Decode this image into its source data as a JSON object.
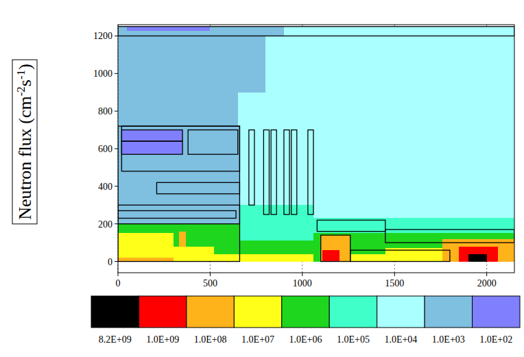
{
  "chart_data": {
    "type": "heatmap",
    "y_label_parts": [
      "Neutron flux (cm",
      "-2",
      "s",
      "-1",
      ")"
    ],
    "xlim": [
      0,
      2150
    ],
    "ylim": [
      -60,
      1260
    ],
    "xticks": [
      0,
      500,
      1000,
      1500,
      2000
    ],
    "yticks": [
      0,
      200,
      400,
      600,
      800,
      1000,
      1200
    ],
    "grid": true,
    "regions": [
      {
        "x": [
          0,
          2150
        ],
        "y": [
          0,
          1250
        ],
        "value": 5000
      },
      {
        "x": [
          0,
          900
        ],
        "y": [
          1200,
          1250
        ],
        "value": 500
      },
      {
        "x": [
          0,
          650
        ],
        "y": [
          720,
          1200
        ],
        "value": 500
      },
      {
        "x": [
          650,
          800
        ],
        "y": [
          900,
          1200
        ],
        "value": 500
      },
      {
        "x": [
          50,
          500
        ],
        "y": [
          1228,
          1250
        ],
        "value": 50
      },
      {
        "x": [
          0,
          660
        ],
        "y": [
          200,
          720
        ],
        "value": 500
      },
      {
        "x": [
          20,
          350
        ],
        "y": [
          570,
          700
        ],
        "value": 50
      },
      {
        "x": [
          660,
          1060
        ],
        "y": [
          100,
          300
        ],
        "value": 50000
      },
      {
        "x": [
          0,
          660
        ],
        "y": [
          0,
          200
        ],
        "value": 500000
      },
      {
        "x": [
          660,
          1080
        ],
        "y": [
          0,
          110
        ],
        "value": 500000
      },
      {
        "x": [
          0,
          300
        ],
        "y": [
          20,
          150
        ],
        "value": 5000000
      },
      {
        "x": [
          0,
          300
        ],
        "y": [
          0,
          20
        ],
        "value": 50000000
      },
      {
        "x": [
          300,
          520
        ],
        "y": [
          0,
          80
        ],
        "value": 5000000
      },
      {
        "x": [
          520,
          1090
        ],
        "y": [
          0,
          40
        ],
        "value": 5000000
      },
      {
        "x": [
          330,
          370
        ],
        "y": [
          80,
          160
        ],
        "value": 50000000
      },
      {
        "x": [
          1060,
          1450
        ],
        "y": [
          150,
          230
        ],
        "value": 50000
      },
      {
        "x": [
          1060,
          1450
        ],
        "y": [
          0,
          150
        ],
        "value": 500000
      },
      {
        "x": [
          1100,
          1260
        ],
        "y": [
          0,
          140
        ],
        "value": 50000000
      },
      {
        "x": [
          1110,
          1200
        ],
        "y": [
          0,
          60
        ],
        "value": 500000000
      },
      {
        "x": [
          1260,
          1450
        ],
        "y": [
          0,
          40
        ],
        "value": 5000000
      },
      {
        "x": [
          1450,
          2150
        ],
        "y": [
          150,
          230
        ],
        "value": 50000
      },
      {
        "x": [
          1450,
          2150
        ],
        "y": [
          70,
          150
        ],
        "value": 500000
      },
      {
        "x": [
          1450,
          2150
        ],
        "y": [
          0,
          70
        ],
        "value": 5000000
      },
      {
        "x": [
          1760,
          2150
        ],
        "y": [
          0,
          120
        ],
        "value": 50000000
      },
      {
        "x": [
          1850,
          2060
        ],
        "y": [
          0,
          80
        ],
        "value": 500000000
      },
      {
        "x": [
          1900,
          2000
        ],
        "y": [
          0,
          40
        ],
        "value": 5000000000
      }
    ],
    "outlines": [
      [
        0,
        1200,
        2150,
        1250
      ],
      [
        0,
        0,
        660,
        720
      ],
      [
        20,
        480,
        660,
        720
      ],
      [
        20,
        570,
        350,
        640
      ],
      [
        20,
        640,
        350,
        700
      ],
      [
        380,
        570,
        650,
        700
      ],
      [
        0,
        200,
        660,
        300
      ],
      [
        0,
        230,
        640,
        270
      ],
      [
        210,
        360,
        660,
        420
      ],
      [
        710,
        300,
        740,
        700
      ],
      [
        790,
        250,
        820,
        700
      ],
      [
        830,
        250,
        860,
        700
      ],
      [
        900,
        250,
        930,
        700
      ],
      [
        940,
        250,
        970,
        700
      ],
      [
        1030,
        250,
        1060,
        700
      ],
      [
        1080,
        160,
        1450,
        220
      ],
      [
        1100,
        0,
        1260,
        140
      ],
      [
        1260,
        0,
        1800,
        60
      ],
      [
        1450,
        100,
        2150,
        170
      ]
    ],
    "colorbar": {
      "ticks": [
        {
          "value": 8200000000,
          "label": "8.2E+09"
        },
        {
          "value": 1000000000,
          "label": "1.0E+09"
        },
        {
          "value": 100000000,
          "label": "1.0E+08"
        },
        {
          "value": 10000000,
          "label": "1.0E+07"
        },
        {
          "value": 1000000,
          "label": "1.0E+06"
        },
        {
          "value": 100000,
          "label": "1.0E+05"
        },
        {
          "value": 10000,
          "label": "1.0E+04"
        },
        {
          "value": 1000,
          "label": "1.0E+03"
        },
        {
          "value": 100,
          "label": "1.0E+02"
        }
      ],
      "colors": [
        "#000000",
        "#ff0000",
        "#ffb31a",
        "#ffff1a",
        "#1fd61f",
        "#40ffc8",
        "#aaffff",
        "#7fbfe0",
        "#8080ff"
      ]
    }
  }
}
